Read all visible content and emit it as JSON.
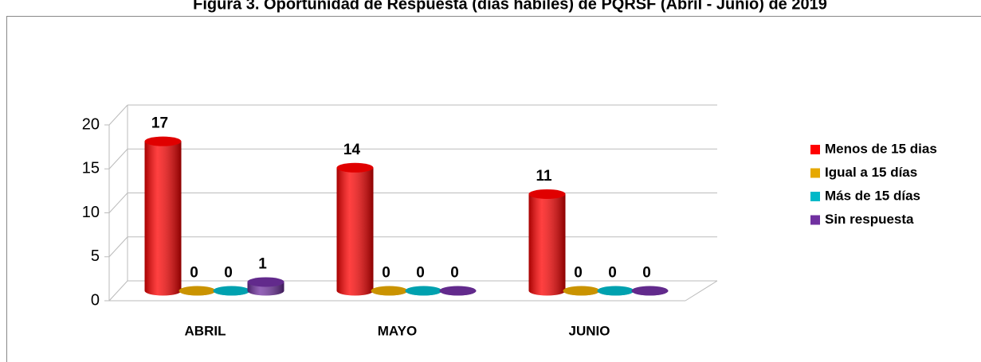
{
  "chart_data": {
    "type": "bar3d",
    "title": "Figura 3. Oportunidad de Respuesta (días hábiles) de PQRSF (Abril - Junio) de 2019",
    "categories": [
      "ABRIL",
      "MAYO",
      "JUNIO"
    ],
    "series": [
      {
        "name": "Menos de 15 dias",
        "color": "#ff0000",
        "values": [
          17,
          14,
          11
        ]
      },
      {
        "name": "Igual a 15 días",
        "color": "#e6a800",
        "values": [
          0,
          0,
          0
        ]
      },
      {
        "name": "Más de 15 días",
        "color": "#00b8c8",
        "values": [
          0,
          0,
          0
        ]
      },
      {
        "name": "Sin respuesta",
        "color": "#7030a0",
        "values": [
          1,
          0,
          0
        ]
      }
    ],
    "ylim": [
      0,
      20
    ],
    "yticks": [
      0,
      5,
      10,
      15,
      20
    ],
    "grid": true,
    "legend": "right"
  }
}
